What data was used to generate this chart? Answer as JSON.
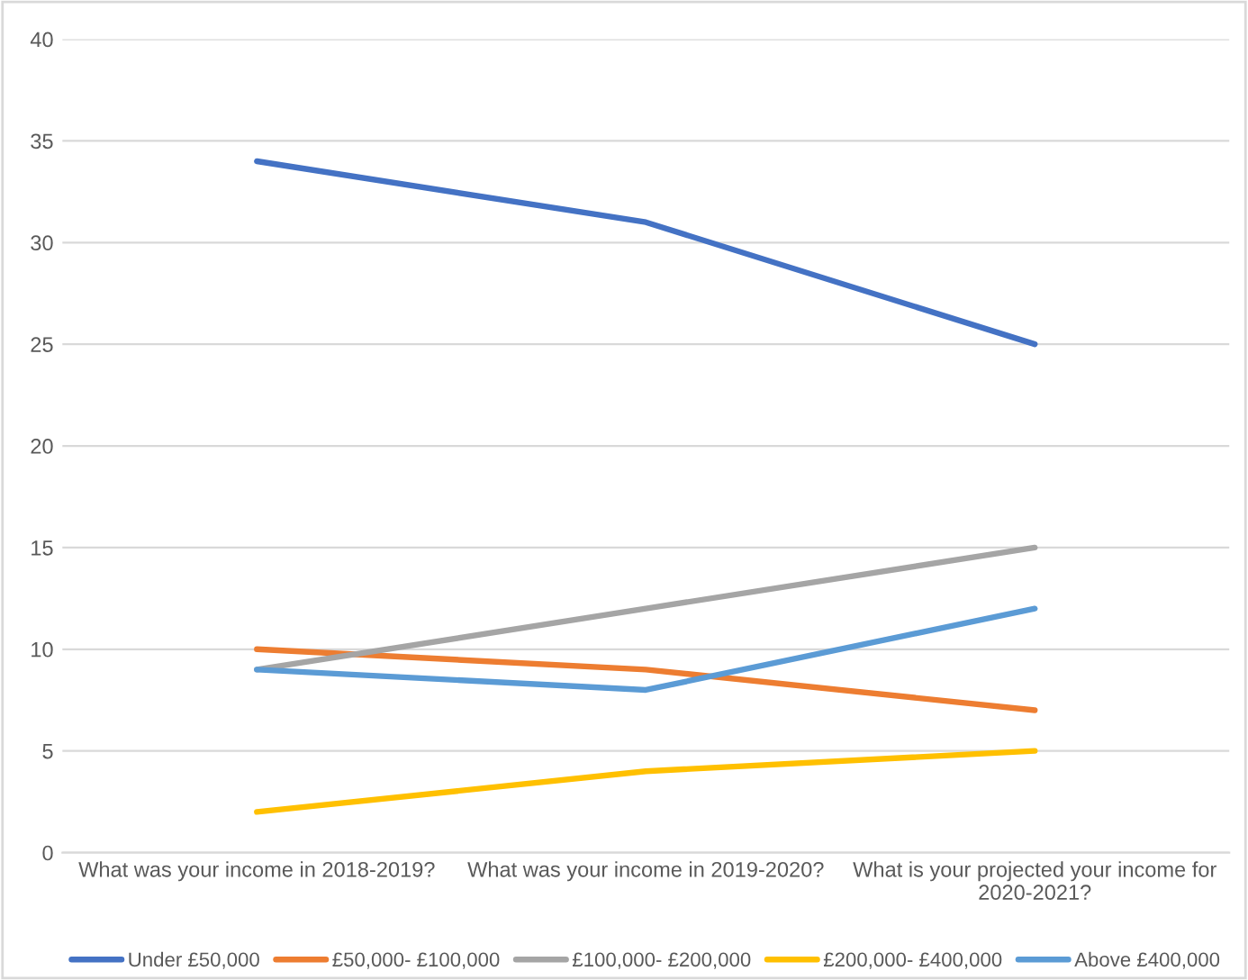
{
  "chart_data": {
    "type": "line",
    "categories": [
      "What was your income in 2018-2019?",
      "What was your income in 2019-2020?",
      "What is your projected your income for 2020-2021?"
    ],
    "series": [
      {
        "name": "Under £50,000",
        "color": "#4472c4",
        "values": [
          34,
          31,
          25
        ]
      },
      {
        "name": "£50,000- £100,000",
        "color": "#ed7d31",
        "values": [
          10,
          9,
          7
        ]
      },
      {
        "name": "£100,000- £200,000",
        "color": "#a5a5a5",
        "values": [
          9,
          12,
          15
        ]
      },
      {
        "name": "£200,000- £400,000",
        "color": "#ffc000",
        "values": [
          2,
          4,
          5
        ]
      },
      {
        "name": "Above £400,000",
        "color": "#5b9bd5",
        "values": [
          9,
          8,
          12
        ]
      }
    ],
    "ylim": [
      0,
      40
    ],
    "yticks": [
      0,
      5,
      10,
      15,
      20,
      25,
      30,
      35,
      40
    ],
    "grid": "y",
    "legend": "bottom",
    "marker": "none",
    "line_style": "solid"
  }
}
